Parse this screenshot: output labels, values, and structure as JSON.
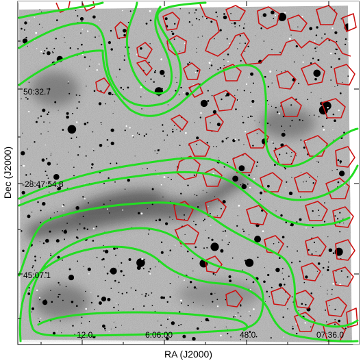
{
  "figure": {
    "x_axis_title": "RA (J2000)",
    "y_axis_title": "Dec (J2000)",
    "x_tick_labels": [
      "12.0",
      "6:06:00",
      "48.0",
      "07:36.0"
    ],
    "y_tick_labels": [
      "50:32.7",
      "-28:47:54.8",
      "45:07.1"
    ],
    "colors": {
      "background": "#ffffff",
      "frame": "#000000",
      "green_contours": "#22dd22",
      "red_contours": "#cc1111",
      "image_sky": "#a8a8a8",
      "image_stars": "#000000"
    }
  }
}
